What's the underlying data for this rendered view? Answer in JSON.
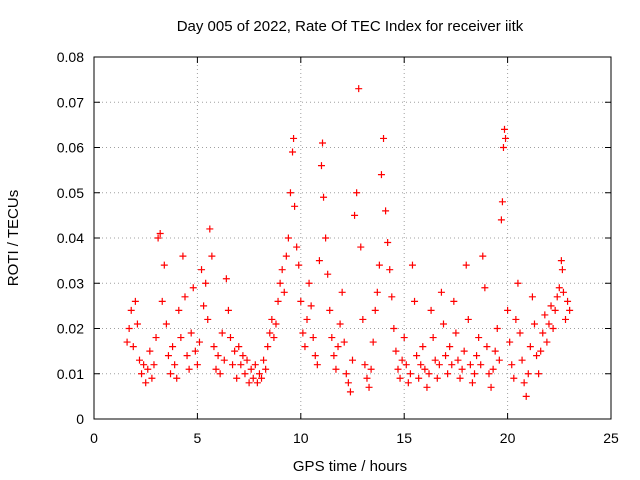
{
  "chart_data": {
    "type": "scatter",
    "title": "Day 005 of 2022, Rate Of TEC Index for receiver iitk",
    "xlabel": "GPS time / hours",
    "ylabel": "ROTI / TECUs",
    "xlim": [
      0,
      25
    ],
    "ylim": [
      0,
      0.08
    ],
    "xticks": [
      0,
      5,
      10,
      15,
      20,
      25
    ],
    "xtick_labels": [
      "0",
      "5",
      "10",
      "15",
      "20",
      "25"
    ],
    "yticks": [
      0,
      0.01,
      0.02,
      0.03,
      0.04,
      0.05,
      0.06,
      0.07,
      0.08
    ],
    "ytick_labels": [
      "0",
      "0.01",
      "0.02",
      "0.03",
      "0.04",
      "0.05",
      "0.06",
      "0.07",
      "0.08"
    ],
    "grid": true,
    "legend": "none",
    "marker": "plus",
    "series": [
      {
        "color": "#ff0000",
        "points": [
          [
            1.6,
            0.017
          ],
          [
            1.7,
            0.02
          ],
          [
            1.8,
            0.024
          ],
          [
            1.9,
            0.016
          ],
          [
            2.0,
            0.026
          ],
          [
            2.1,
            0.021
          ],
          [
            2.2,
            0.013
          ],
          [
            2.3,
            0.01
          ],
          [
            2.4,
            0.012
          ],
          [
            2.5,
            0.008
          ],
          [
            2.6,
            0.011
          ],
          [
            2.7,
            0.015
          ],
          [
            2.8,
            0.009
          ],
          [
            2.9,
            0.012
          ],
          [
            3.0,
            0.018
          ],
          [
            3.1,
            0.04
          ],
          [
            3.2,
            0.041
          ],
          [
            3.3,
            0.026
          ],
          [
            3.4,
            0.034
          ],
          [
            3.5,
            0.021
          ],
          [
            3.6,
            0.014
          ],
          [
            3.7,
            0.01
          ],
          [
            3.8,
            0.016
          ],
          [
            3.9,
            0.012
          ],
          [
            4.0,
            0.009
          ],
          [
            4.1,
            0.024
          ],
          [
            4.2,
            0.018
          ],
          [
            4.3,
            0.036
          ],
          [
            4.4,
            0.027
          ],
          [
            4.5,
            0.014
          ],
          [
            4.6,
            0.011
          ],
          [
            4.7,
            0.019
          ],
          [
            4.8,
            0.029
          ],
          [
            4.9,
            0.015
          ],
          [
            5.0,
            0.012
          ],
          [
            5.1,
            0.017
          ],
          [
            5.2,
            0.033
          ],
          [
            5.3,
            0.025
          ],
          [
            5.4,
            0.03
          ],
          [
            5.5,
            0.022
          ],
          [
            5.6,
            0.042
          ],
          [
            5.7,
            0.036
          ],
          [
            5.8,
            0.016
          ],
          [
            5.9,
            0.011
          ],
          [
            6.0,
            0.014
          ],
          [
            6.1,
            0.01
          ],
          [
            6.2,
            0.019
          ],
          [
            6.3,
            0.013
          ],
          [
            6.4,
            0.031
          ],
          [
            6.5,
            0.024
          ],
          [
            6.6,
            0.018
          ],
          [
            6.7,
            0.012
          ],
          [
            6.8,
            0.015
          ],
          [
            6.9,
            0.009
          ],
          [
            7.0,
            0.016
          ],
          [
            7.1,
            0.012
          ],
          [
            7.2,
            0.014
          ],
          [
            7.3,
            0.01
          ],
          [
            7.4,
            0.013
          ],
          [
            7.5,
            0.008
          ],
          [
            7.6,
            0.011
          ],
          [
            7.7,
            0.009
          ],
          [
            7.8,
            0.012
          ],
          [
            7.9,
            0.008
          ],
          [
            8.0,
            0.01
          ],
          [
            8.1,
            0.009
          ],
          [
            8.2,
            0.013
          ],
          [
            8.3,
            0.011
          ],
          [
            8.4,
            0.016
          ],
          [
            8.5,
            0.019
          ],
          [
            8.6,
            0.022
          ],
          [
            8.7,
            0.018
          ],
          [
            8.8,
            0.021
          ],
          [
            8.9,
            0.026
          ],
          [
            9.0,
            0.03
          ],
          [
            9.1,
            0.033
          ],
          [
            9.2,
            0.028
          ],
          [
            9.3,
            0.036
          ],
          [
            9.4,
            0.04
          ],
          [
            9.5,
            0.05
          ],
          [
            9.6,
            0.059
          ],
          [
            9.65,
            0.062
          ],
          [
            9.7,
            0.047
          ],
          [
            9.8,
            0.038
          ],
          [
            9.9,
            0.034
          ],
          [
            10.0,
            0.026
          ],
          [
            10.1,
            0.019
          ],
          [
            10.2,
            0.016
          ],
          [
            10.3,
            0.022
          ],
          [
            10.4,
            0.03
          ],
          [
            10.5,
            0.025
          ],
          [
            10.6,
            0.018
          ],
          [
            10.7,
            0.014
          ],
          [
            10.8,
            0.012
          ],
          [
            10.9,
            0.035
          ],
          [
            11.0,
            0.056
          ],
          [
            11.05,
            0.061
          ],
          [
            11.1,
            0.049
          ],
          [
            11.2,
            0.04
          ],
          [
            11.3,
            0.032
          ],
          [
            11.4,
            0.024
          ],
          [
            11.5,
            0.018
          ],
          [
            11.6,
            0.014
          ],
          [
            11.7,
            0.011
          ],
          [
            11.8,
            0.016
          ],
          [
            11.9,
            0.021
          ],
          [
            12.0,
            0.028
          ],
          [
            12.1,
            0.017
          ],
          [
            12.2,
            0.01
          ],
          [
            12.3,
            0.008
          ],
          [
            12.4,
            0.006
          ],
          [
            12.5,
            0.013
          ],
          [
            12.6,
            0.045
          ],
          [
            12.7,
            0.05
          ],
          [
            12.8,
            0.073
          ],
          [
            12.9,
            0.038
          ],
          [
            13.0,
            0.022
          ],
          [
            13.1,
            0.012
          ],
          [
            13.2,
            0.009
          ],
          [
            13.3,
            0.007
          ],
          [
            13.4,
            0.011
          ],
          [
            13.5,
            0.017
          ],
          [
            13.6,
            0.024
          ],
          [
            13.7,
            0.028
          ],
          [
            13.8,
            0.034
          ],
          [
            13.9,
            0.054
          ],
          [
            14.0,
            0.062
          ],
          [
            14.1,
            0.046
          ],
          [
            14.2,
            0.039
          ],
          [
            14.3,
            0.033
          ],
          [
            14.4,
            0.027
          ],
          [
            14.5,
            0.02
          ],
          [
            14.6,
            0.015
          ],
          [
            14.7,
            0.011
          ],
          [
            14.8,
            0.009
          ],
          [
            14.9,
            0.013
          ],
          [
            15.0,
            0.018
          ],
          [
            15.1,
            0.012
          ],
          [
            15.2,
            0.008
          ],
          [
            15.3,
            0.01
          ],
          [
            15.4,
            0.034
          ],
          [
            15.5,
            0.026
          ],
          [
            15.6,
            0.014
          ],
          [
            15.7,
            0.009
          ],
          [
            15.8,
            0.012
          ],
          [
            15.9,
            0.016
          ],
          [
            16.0,
            0.011
          ],
          [
            16.1,
            0.007
          ],
          [
            16.2,
            0.01
          ],
          [
            16.3,
            0.024
          ],
          [
            16.4,
            0.018
          ],
          [
            16.5,
            0.013
          ],
          [
            16.6,
            0.009
          ],
          [
            16.7,
            0.012
          ],
          [
            16.8,
            0.028
          ],
          [
            16.9,
            0.021
          ],
          [
            17.0,
            0.014
          ],
          [
            17.1,
            0.01
          ],
          [
            17.2,
            0.016
          ],
          [
            17.3,
            0.012
          ],
          [
            17.4,
            0.026
          ],
          [
            17.5,
            0.019
          ],
          [
            17.6,
            0.013
          ],
          [
            17.7,
            0.009
          ],
          [
            17.8,
            0.011
          ],
          [
            17.9,
            0.015
          ],
          [
            18.0,
            0.034
          ],
          [
            18.1,
            0.022
          ],
          [
            18.2,
            0.012
          ],
          [
            18.3,
            0.008
          ],
          [
            18.4,
            0.01
          ],
          [
            18.5,
            0.014
          ],
          [
            18.6,
            0.018
          ],
          [
            18.7,
            0.012
          ],
          [
            18.8,
            0.036
          ],
          [
            18.9,
            0.029
          ],
          [
            19.0,
            0.016
          ],
          [
            19.1,
            0.01
          ],
          [
            19.2,
            0.007
          ],
          [
            19.3,
            0.011
          ],
          [
            19.4,
            0.015
          ],
          [
            19.5,
            0.02
          ],
          [
            19.6,
            0.013
          ],
          [
            19.7,
            0.044
          ],
          [
            19.75,
            0.048
          ],
          [
            19.8,
            0.06
          ],
          [
            19.85,
            0.064
          ],
          [
            19.9,
            0.062
          ],
          [
            20.0,
            0.024
          ],
          [
            20.1,
            0.017
          ],
          [
            20.2,
            0.012
          ],
          [
            20.3,
            0.009
          ],
          [
            20.4,
            0.022
          ],
          [
            20.5,
            0.03
          ],
          [
            20.6,
            0.019
          ],
          [
            20.7,
            0.013
          ],
          [
            20.8,
            0.008
          ],
          [
            20.9,
            0.005
          ],
          [
            21.0,
            0.01
          ],
          [
            21.1,
            0.016
          ],
          [
            21.2,
            0.027
          ],
          [
            21.3,
            0.021
          ],
          [
            21.4,
            0.014
          ],
          [
            21.5,
            0.01
          ],
          [
            21.6,
            0.015
          ],
          [
            21.7,
            0.019
          ],
          [
            21.8,
            0.023
          ],
          [
            21.9,
            0.017
          ],
          [
            22.0,
            0.021
          ],
          [
            22.1,
            0.025
          ],
          [
            22.2,
            0.02
          ],
          [
            22.3,
            0.024
          ],
          [
            22.4,
            0.027
          ],
          [
            22.5,
            0.029
          ],
          [
            22.6,
            0.035
          ],
          [
            22.65,
            0.033
          ],
          [
            22.7,
            0.028
          ],
          [
            22.8,
            0.022
          ],
          [
            22.9,
            0.026
          ],
          [
            23.0,
            0.024
          ]
        ]
      }
    ]
  }
}
